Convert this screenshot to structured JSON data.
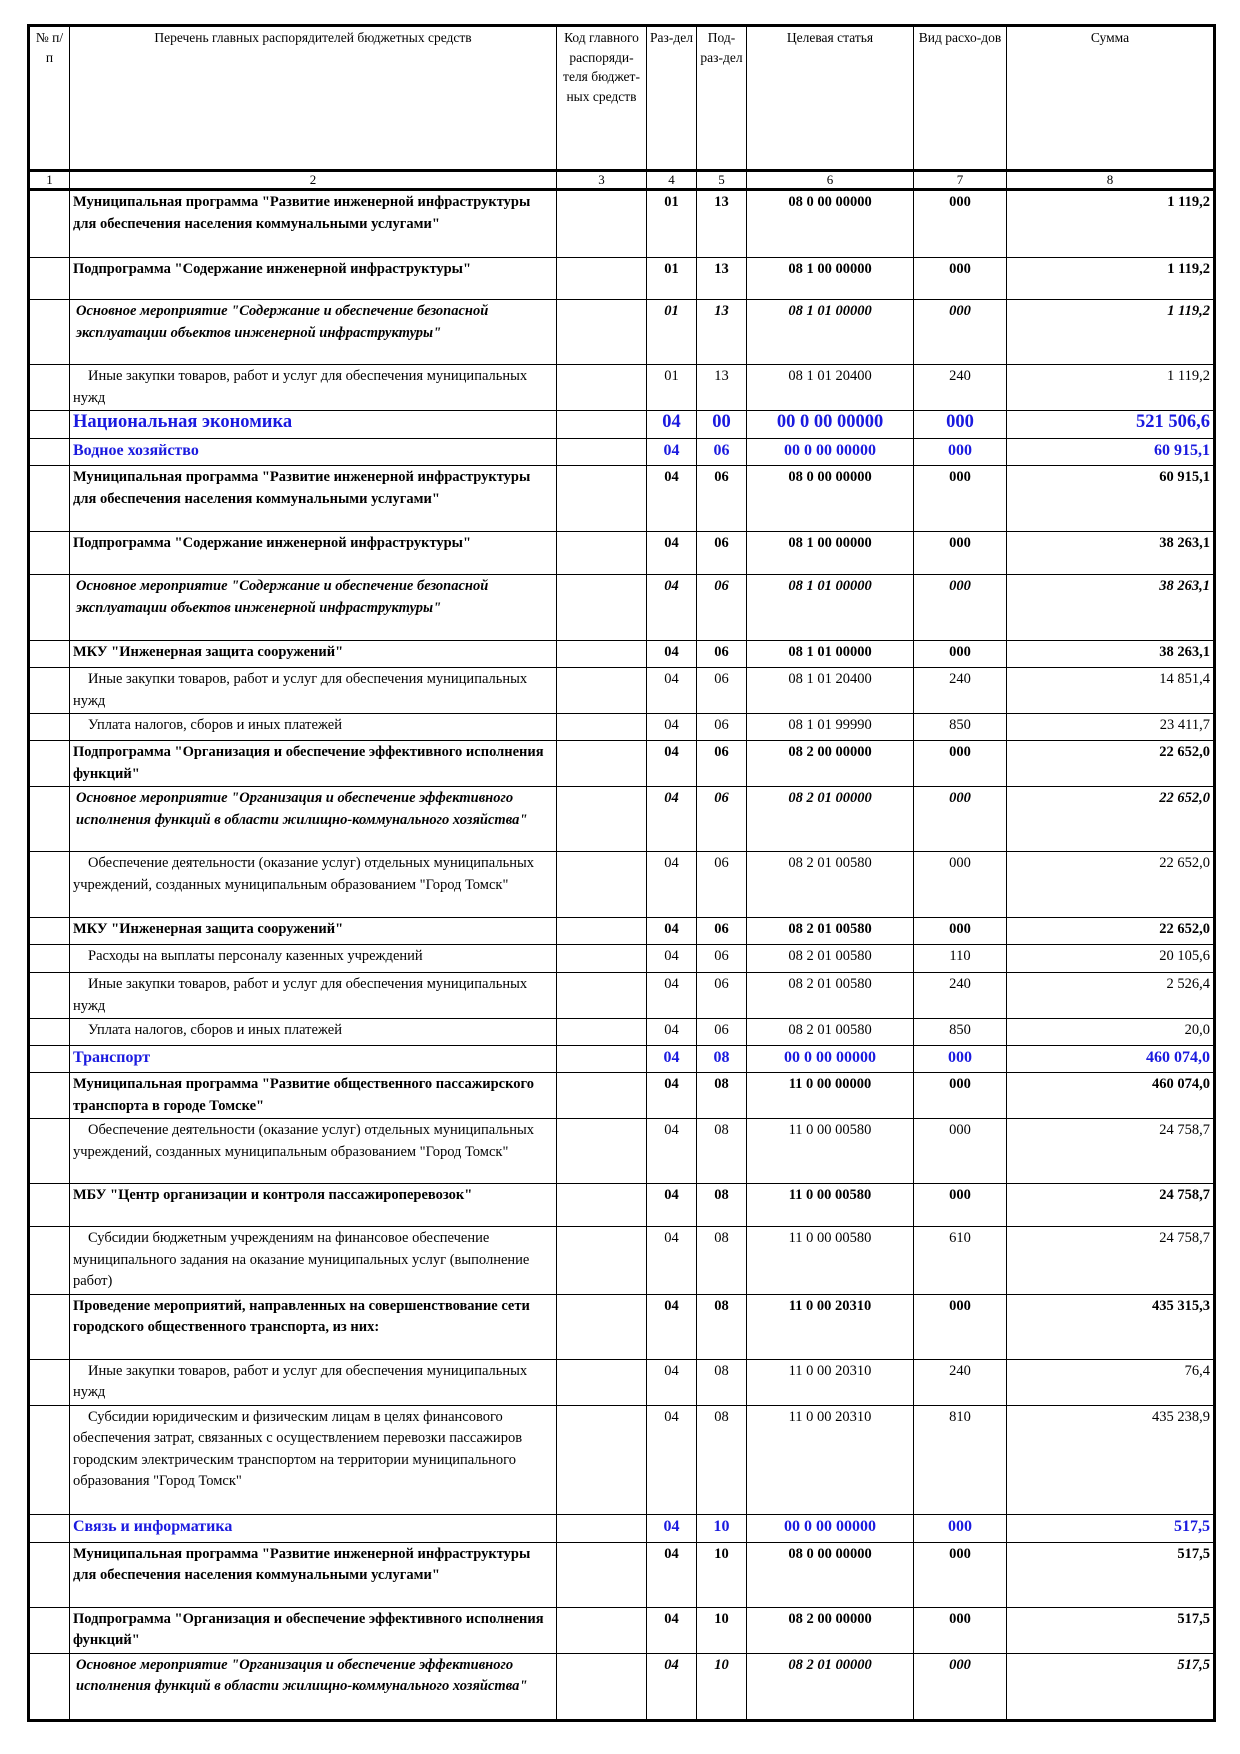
{
  "header": {
    "col1": "№ п/п",
    "col2": "Перечень главных распорядителей бюджетных средств",
    "col3": "Код главного распоряди-теля бюджет-ных средств",
    "col4": "Раз-дел",
    "col5": "Под-раз-дел",
    "col6": "Целевая статья",
    "col7": "Вид расхо-дов",
    "col8": "Сумма"
  },
  "column_numbers": [
    "1",
    "2",
    "3",
    "4",
    "5",
    "6",
    "7",
    "8"
  ],
  "rows": [
    {
      "level": "bold",
      "name": "Муниципальная программа \"Развитие инженерной инфраструктуры для обеспечения населения коммунальными услугами\"",
      "section": "01",
      "subsection": "13",
      "target": "08 0 00 00000",
      "type": "000",
      "sum": "1 119,2"
    },
    {
      "level": "bold",
      "name": "Подпрограмма \"Содержание инженерной инфраструктуры\"",
      "section": "01",
      "subsection": "13",
      "target": "08 1 00 00000",
      "type": "000",
      "sum": "1 119,2"
    },
    {
      "level": "italic",
      "name": "Основное мероприятие \"Содержание и обеспечение безопасной эксплуатации объектов инженерной инфраструктуры\"",
      "section": "01",
      "subsection": "13",
      "target": "08 1 01 00000",
      "type": "000",
      "sum": "1 119,2"
    },
    {
      "level": "normal",
      "name": "Иные закупки товаров, работ и услуг для обеспечения муниципальных нужд",
      "section": "01",
      "subsection": "13",
      "target": "08 1 01 20400",
      "type": "240",
      "sum": "1 119,2"
    },
    {
      "level": "blue-lg",
      "name": "Национальная экономика",
      "section": "04",
      "subsection": "00",
      "target": "00 0 00 00000",
      "type": "000",
      "sum": "521 506,6"
    },
    {
      "level": "blue",
      "name": "Водное хозяйство",
      "section": "04",
      "subsection": "06",
      "target": "00 0 00 00000",
      "type": "000",
      "sum": "60 915,1"
    },
    {
      "level": "bold",
      "name": "Муниципальная программа \"Развитие инженерной инфраструктуры для обеспечения населения коммунальными услугами\"",
      "section": "04",
      "subsection": "06",
      "target": "08 0 00 00000",
      "type": "000",
      "sum": "60 915,1"
    },
    {
      "level": "bold",
      "name": "Подпрограмма \"Содержание инженерной инфраструктуры\"",
      "section": "04",
      "subsection": "06",
      "target": "08 1 00 00000",
      "type": "000",
      "sum": "38 263,1"
    },
    {
      "level": "italic",
      "name": "Основное мероприятие \"Содержание и обеспечение безопасной эксплуатации объектов инженерной инфраструктуры\"",
      "section": "04",
      "subsection": "06",
      "target": "08 1 01 00000",
      "type": "000",
      "sum": "38 263,1"
    },
    {
      "level": "bold",
      "name": "МКУ \"Инженерная защита сооружений\"",
      "section": "04",
      "subsection": "06",
      "target": "08 1 01 00000",
      "type": "000",
      "sum": "38 263,1"
    },
    {
      "level": "normal",
      "name": "Иные закупки товаров, работ и услуг для обеспечения муниципальных нужд",
      "section": "04",
      "subsection": "06",
      "target": "08 1 01 20400",
      "type": "240",
      "sum": "14 851,4"
    },
    {
      "level": "normal",
      "name": "Уплата налогов, сборов и иных платежей",
      "section": "04",
      "subsection": "06",
      "target": "08 1 01 99990",
      "type": "850",
      "sum": "23 411,7"
    },
    {
      "level": "bold",
      "name": "Подпрограмма \"Организация и обеспечение эффективного исполнения функций\"",
      "section": "04",
      "subsection": "06",
      "target": "08 2 00 00000",
      "type": "000",
      "sum": "22 652,0"
    },
    {
      "level": "italic",
      "name": "Основное мероприятие \"Организация и обеспечение эффективного исполнения функций в области жилищно-коммунального хозяйства\"",
      "section": "04",
      "subsection": "06",
      "target": "08 2 01 00000",
      "type": "000",
      "sum": "22 652,0"
    },
    {
      "level": "normal",
      "name": "Обеспечение деятельности (оказание услуг) отдельных муниципальных учреждений, созданных муниципальным образованием \"Город Томск\"",
      "section": "04",
      "subsection": "06",
      "target": "08 2 01 00580",
      "type": "000",
      "sum": "22 652,0"
    },
    {
      "level": "bold",
      "name": "МКУ \"Инженерная защита сооружений\"",
      "section": "04",
      "subsection": "06",
      "target": "08 2 01 00580",
      "type": "000",
      "sum": "22 652,0"
    },
    {
      "level": "normal",
      "name": "Расходы на выплаты персоналу казенных учреждений",
      "section": "04",
      "subsection": "06",
      "target": "08 2 01 00580",
      "type": "110",
      "sum": "20 105,6"
    },
    {
      "level": "normal",
      "name": "Иные закупки товаров, работ и услуг для обеспечения муниципальных нужд",
      "section": "04",
      "subsection": "06",
      "target": "08 2 01 00580",
      "type": "240",
      "sum": "2 526,4"
    },
    {
      "level": "normal",
      "name": "Уплата налогов, сборов и иных платежей",
      "section": "04",
      "subsection": "06",
      "target": "08 2 01 00580",
      "type": "850",
      "sum": "20,0"
    },
    {
      "level": "blue",
      "name": "Транспорт",
      "section": "04",
      "subsection": "08",
      "target": "00 0 00 00000",
      "type": "000",
      "sum": "460 074,0"
    },
    {
      "level": "bold",
      "name": "Муниципальная программа \"Развитие общественного пассажирского транспорта в городе Томске\"",
      "section": "04",
      "subsection": "08",
      "target": "11 0 00 00000",
      "type": "000",
      "sum": "460 074,0"
    },
    {
      "level": "normal",
      "name": "Обеспечение деятельности (оказание услуг) отдельных муниципальных учреждений, созданных муниципальным образованием \"Город Томск\"",
      "section": "04",
      "subsection": "08",
      "target": "11 0 00 00580",
      "type": "000",
      "sum": "24 758,7"
    },
    {
      "level": "bold",
      "name": "МБУ \"Центр организации и контроля пассажироперевозок\"",
      "section": "04",
      "subsection": "08",
      "target": "11 0 00 00580",
      "type": "000",
      "sum": "24 758,7"
    },
    {
      "level": "normal",
      "name": "Субсидии бюджетным учреждениям на финансовое обеспечение муниципального задания на оказание муниципальных услуг (выполнение работ)",
      "section": "04",
      "subsection": "08",
      "target": "11 0 00 00580",
      "type": "610",
      "sum": "24 758,7"
    },
    {
      "level": "bold",
      "name": "Проведение мероприятий, направленных на совершенствование сети городского общественного транспорта, из них:",
      "section": "04",
      "subsection": "08",
      "target": "11 0 00 20310",
      "type": "000",
      "sum": "435 315,3"
    },
    {
      "level": "normal",
      "name": "Иные закупки товаров, работ и услуг для обеспечения муниципальных нужд",
      "section": "04",
      "subsection": "08",
      "target": "11 0 00 20310",
      "type": "240",
      "sum": "76,4"
    },
    {
      "level": "normal",
      "name": "Субсидии юридическим и физическим лицам в целях финансового обеспечения затрат, связанных с осуществлением перевозки пассажиров городским электрическим транспортом на территории муниципального образования \"Город Томск\"",
      "section": "04",
      "subsection": "08",
      "target": "11 0 00 20310",
      "type": "810",
      "sum": "435 238,9"
    },
    {
      "level": "blue",
      "name": "Связь и информатика",
      "section": "04",
      "subsection": "10",
      "target": "00 0 00 00000",
      "type": "000",
      "sum": "517,5"
    },
    {
      "level": "bold",
      "name": "Муниципальная программа \"Развитие инженерной инфраструктуры для обеспечения населения коммунальными услугами\"",
      "section": "04",
      "subsection": "10",
      "target": "08 0 00 00000",
      "type": "000",
      "sum": "517,5"
    },
    {
      "level": "bold",
      "name": "Подпрограмма \"Организация и обеспечение эффективного исполнения функций\"",
      "section": "04",
      "subsection": "10",
      "target": "08 2 00 00000",
      "type": "000",
      "sum": "517,5"
    },
    {
      "level": "italic",
      "name": "Основное мероприятие \"Организация и обеспечение эффективного исполнения функций в области жилищно-коммунального хозяйства\"",
      "section": "04",
      "subsection": "10",
      "target": "08 2 01 00000",
      "type": "000",
      "sum": "517,5"
    }
  ]
}
